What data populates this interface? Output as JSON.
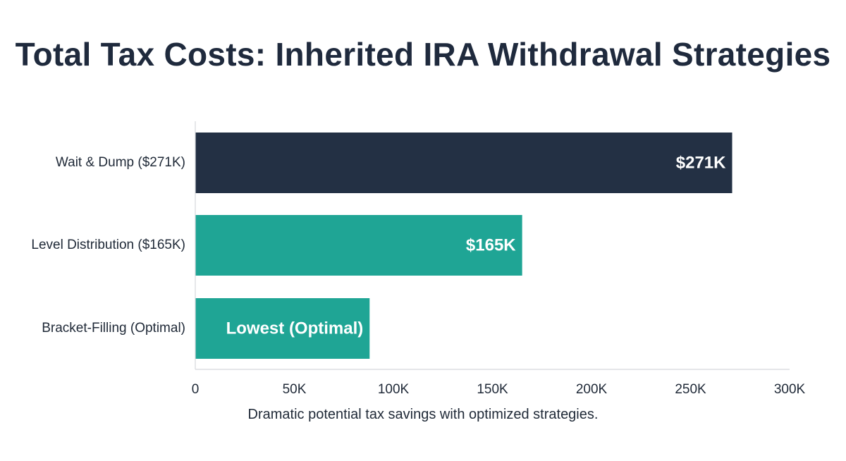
{
  "chart_data": {
    "type": "bar",
    "orientation": "horizontal",
    "title": "Total Tax Costs: Inherited IRA Withdrawal Strategies",
    "caption": "Dramatic potential tax savings with optimized strategies.",
    "categories": [
      "Wait & Dump ($271K)",
      "Level Distribution ($165K)",
      "Bracket-Filling (Optimal)"
    ],
    "values": [
      271000,
      165000,
      88000
    ],
    "bar_labels": [
      "$271K",
      "$165K",
      "Lowest (Optimal)"
    ],
    "bar_colors": [
      "#233044",
      "#1fa595",
      "#1fa595"
    ],
    "xlim": [
      0,
      300000
    ],
    "x_ticks": [
      0,
      50000,
      100000,
      150000,
      200000,
      250000,
      300000
    ],
    "x_tick_labels": [
      "0",
      "50K",
      "100K",
      "150K",
      "200K",
      "250K",
      "300K"
    ],
    "xlabel": "",
    "ylabel": "",
    "grid": false,
    "legend": "none"
  }
}
